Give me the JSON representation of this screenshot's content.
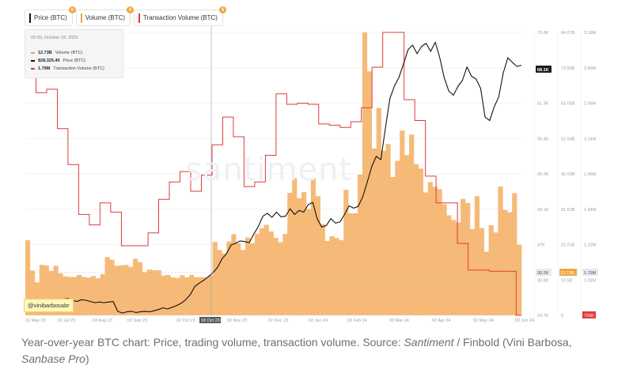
{
  "legend": {
    "items": [
      {
        "label": "Price (BTC)",
        "color": "#111111"
      },
      {
        "label": "Volume (BTC)",
        "color": "#f0a640"
      },
      {
        "label": "Transaction Volume (BTC)",
        "color": "#e03a3a"
      }
    ],
    "badge": "8"
  },
  "tooltip": {
    "date": "09:00, October 18, 2023",
    "rows": [
      {
        "value": "12.73B",
        "label": "Volume (BTC)",
        "color": "#f0a640"
      },
      {
        "value": "$28,325.40",
        "label": "Price (BTC)",
        "color": "#111111"
      },
      {
        "value": "1.79M",
        "label": "Transaction Volume (BTC)",
        "color": "#e03a3a"
      }
    ]
  },
  "watermark": "santiment",
  "credit": "@vinibarbosabr",
  "caption": {
    "before": "Year-over-year BTC chart: Price, trading volume, transaction volume. Source: ",
    "source": "Santiment",
    "middle": " / Finbold (Vini Barbosa, ",
    "tool": "Sanbase Pro",
    "after": ")"
  },
  "chart_data": {
    "type": "line",
    "x_labels": [
      "31 May 23",
      "02 Jul 23",
      "03 Aug 23",
      "02 Sep 23",
      "02 Oct 23",
      "18 Oct 23",
      "02 Nov 23",
      "02 Dec 23",
      "02 Jan 24",
      "02 Feb 24",
      "02 Mar 24",
      "02 Apr 24",
      "02 May 24",
      "02 Jun 24"
    ],
    "highlight_x_label": "18 Oct 23",
    "axes": {
      "price": {
        "ticks": [
          "73.8K",
          "67.6K",
          "61.3K",
          "55.4K",
          "49.2K",
          "43.1K",
          "37K",
          "30.8K",
          "24.7K"
        ],
        "range": [
          24700,
          73800
        ],
        "current": "68.1K",
        "crosshair": "30.2K"
      },
      "volume": {
        "ticks": [
          "84.07B",
          "73.56B",
          "63.05B",
          "52.54B",
          "42.03B",
          "31.52B",
          "21.01B",
          "10.5B",
          "0"
        ],
        "range": [
          0,
          84070000000
        ],
        "crosshair": "12.73B"
      },
      "transaction_volume": {
        "ticks": [
          "3.16M",
          "2.86M",
          "2.56M",
          "2.24M",
          "1.96M",
          "1.64M",
          "1.32M",
          "1.02M"
        ],
        "range": [
          720000,
          3160000
        ],
        "crosshair": "1.79M",
        "bottom": "720K"
      }
    },
    "series": [
      {
        "name": "Price (BTC)",
        "color": "#111111",
        "axis": "price",
        "values": [
          26800,
          27100,
          27000,
          27300,
          27500,
          27600,
          27300,
          27100,
          27400,
          27300,
          27100,
          26900,
          27000,
          26900,
          27000,
          27100,
          25400,
          25100,
          25300,
          25400,
          25200,
          25300,
          25400,
          25300,
          25500,
          25700,
          26000,
          25800,
          26100,
          26400,
          26800,
          27400,
          28300,
          29700,
          30300,
          30800,
          31400,
          32100,
          33000,
          34500,
          35400,
          36900,
          37200,
          37600,
          37500,
          37300,
          38800,
          40100,
          41900,
          42400,
          41700,
          42600,
          41800,
          41900,
          43200,
          42200,
          42900,
          42600,
          43900,
          44300,
          41400,
          40000,
          40300,
          41500,
          40700,
          40900,
          42200,
          43700,
          43300,
          43600,
          45200,
          47800,
          50500,
          52300,
          51700,
          57100,
          62300,
          64500,
          66000,
          68300,
          70800,
          71600,
          70100,
          71400,
          71900,
          70500,
          72100,
          69400,
          65900,
          63600,
          62900,
          64400,
          65500,
          67800,
          66200,
          65700,
          64100,
          59100,
          58500,
          60900,
          62600,
          66800,
          69400,
          68600,
          67900,
          68100
        ]
      },
      {
        "name": "Volume (BTC)",
        "color": "#f0a640",
        "axis": "volume",
        "values": [
          22.3,
          13.3,
          9.8,
          15.0,
          14.8,
          13.2,
          14.7,
          12.5,
          11.6,
          11.4,
          11.4,
          12.0,
          11.4,
          11.2,
          11.7,
          11.0,
          12.2,
          17.3,
          16.5,
          14.7,
          14.9,
          15.0,
          14.4,
          16.8,
          15.8,
          12.8,
          13.6,
          13.4,
          13.4,
          11.8,
          12.0,
          11.3,
          11.1,
          11.9,
          11.3,
          12.0,
          11.3,
          11.4,
          11.3,
          11.9,
          21.8,
          19.4,
          18.4,
          21.9,
          24.1,
          21.4,
          19.4,
          23.1,
          21.4,
          24.2,
          25.9,
          26.9,
          24.9,
          23.0,
          21.7,
          24.2,
          36.4,
          40.8,
          34.8,
          36.6,
          31.6,
          40.9,
          35.4,
          27.1,
          22.1,
          23.5,
          23.0,
          22.3,
          37.3,
          30.3,
          30.3,
          41.8,
          84.1,
          72.5,
          49.6,
          61.6,
          48.9,
          50.9,
          41.1,
          45.9,
          54.9,
          47.6,
          53.7,
          44.9,
          43.6,
          36.5,
          39.6,
          38.2,
          37.5,
          33.0,
          29.7,
          28.3,
          27.6,
          34.6,
          33.4,
          25.6,
          35.4,
          25.9,
          18.9,
          26.8,
          24.6,
          38.3,
          31.3,
          30.6,
          36.3,
          21.0
        ]
      },
      {
        "name": "Transaction Volume (BTC)",
        "color": "#e03a3a",
        "axis": "transaction_volume",
        "values": [
          3.04,
          3.04,
          2.64,
          2.64,
          2.67,
          2.67,
          2.33,
          2.33,
          2.02,
          2.02,
          1.59,
          1.59,
          1.5,
          1.5,
          1.69,
          1.69,
          1.61,
          1.61,
          1.32,
          1.32,
          1.32,
          1.32,
          1.32,
          1.43,
          1.43,
          1.72,
          1.72,
          1.87,
          1.87,
          1.96,
          1.96,
          1.79,
          1.79,
          1.93,
          1.93,
          2.19,
          2.19,
          2.43,
          2.43,
          2.26,
          2.26,
          1.83,
          1.83,
          1.87,
          1.87,
          2.1,
          2.1,
          2.63,
          2.63,
          2.54,
          2.54,
          2.55,
          2.55,
          2.54,
          2.54,
          2.37,
          2.37,
          2.36,
          2.36,
          2.34,
          2.34,
          2.39,
          2.39,
          2.51,
          2.51,
          2.86,
          2.86,
          3.16,
          3.16,
          3.16,
          3.16,
          2.58,
          2.58,
          2.4,
          2.4,
          1.92,
          1.92,
          1.69,
          1.69,
          1.69,
          1.69,
          1.34,
          1.34,
          1.11,
          1.11,
          1.11,
          1.11,
          1.1,
          1.1,
          1.1,
          1.1,
          1.1,
          0.72
        ]
      }
    ],
    "grid": true
  }
}
